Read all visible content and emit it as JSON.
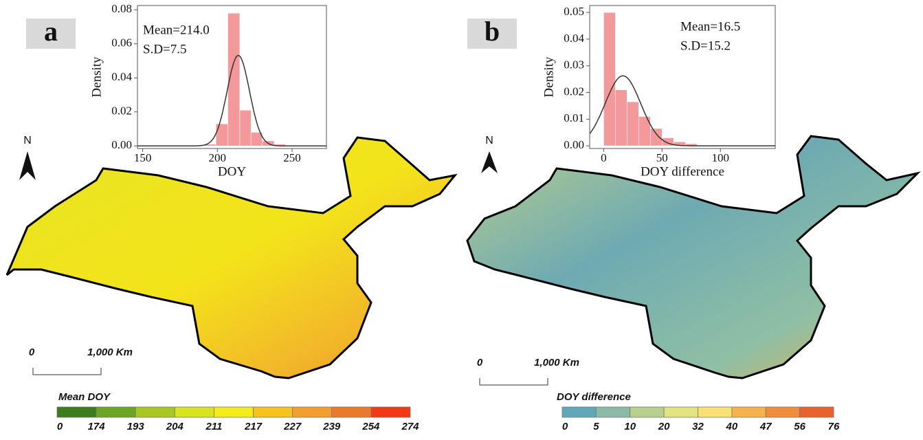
{
  "chart_data": [
    {
      "type": "histogram",
      "x_label": "DOY",
      "y_label": "Density",
      "fit": {
        "mean": {
          "value": 214.0,
          "label": "Mean=214.0"
        },
        "sd": {
          "value": 7.5,
          "label": "S.D=7.5"
        }
      },
      "bins": [
        191.5,
        199,
        207,
        215,
        222.5,
        230,
        238,
        245.5
      ],
      "values": [
        0.001,
        0.013,
        0.078,
        0.021,
        0.008,
        0.003,
        0.001
      ],
      "color": "#f4999b",
      "curve_color": "#333333",
      "xlim": [
        146.5,
        273
      ],
      "ylim": [
        -0.0015,
        0.0825
      ],
      "xticks": [
        150,
        200,
        250
      ],
      "yticks": [
        {
          "value": 0,
          "label": "0.00"
        },
        {
          "value": 0.02,
          "label": "0.02"
        },
        {
          "value": 0.04,
          "label": "0.04"
        },
        {
          "value": 0.06,
          "label": "0.06"
        },
        {
          "value": 0.08,
          "label": "0.08"
        }
      ]
    },
    {
      "type": "histogram",
      "x_label": "DOY difference",
      "y_label": "Density",
      "fit": {
        "mean": {
          "value": 16.5,
          "label": "Mean=16.5"
        },
        "sd": {
          "value": 15.2,
          "label": "S.D=15.2"
        }
      },
      "bins": [
        0,
        10,
        20,
        30,
        40,
        50,
        60,
        70,
        80
      ],
      "values": [
        0.05,
        0.021,
        0.0165,
        0.011,
        0.0065,
        0.003,
        0.0015,
        0.0008
      ],
      "color": "#f4999b",
      "curve_color": "#333333",
      "xlim": [
        -12,
        147
      ],
      "ylim": [
        -0.001,
        0.0526
      ],
      "xticks": [
        0,
        50,
        100
      ],
      "yticks": [
        {
          "value": 0,
          "label": "0.00"
        },
        {
          "value": 0.01,
          "label": "0.01"
        },
        {
          "value": 0.02,
          "label": "0.02"
        },
        {
          "value": 0.03,
          "label": "0.03"
        },
        {
          "value": 0.04,
          "label": "0.04"
        },
        {
          "value": 0.05,
          "label": "0.05"
        }
      ]
    }
  ],
  "maps": [
    {
      "panel": "a",
      "north": "N",
      "scale": [
        "0",
        "1,000 Km"
      ],
      "legend_title": "Mean DOY",
      "colorbar": {
        "ticks": [
          0,
          174,
          193,
          204,
          211,
          217,
          227,
          239,
          254,
          274
        ],
        "colors": [
          "#3b7c1c",
          "#6aa622",
          "#a6c81f",
          "#d8e420",
          "#f5ea1a",
          "#f6c31d",
          "#f2a02b",
          "#ec7a2a",
          "#f23a17"
        ]
      }
    },
    {
      "panel": "b",
      "north": "N",
      "scale": [
        "0",
        "1,000 Km"
      ],
      "legend_title": "DOY difference",
      "colorbar": {
        "ticks": [
          0,
          5,
          10,
          20,
          32,
          40,
          47,
          56,
          76
        ],
        "colors": [
          "#5fa7b9",
          "#89bba6",
          "#b9cf8c",
          "#e2e47e",
          "#f9e171",
          "#f7b34a",
          "#f08c3b",
          "#e9612d"
        ]
      }
    }
  ]
}
